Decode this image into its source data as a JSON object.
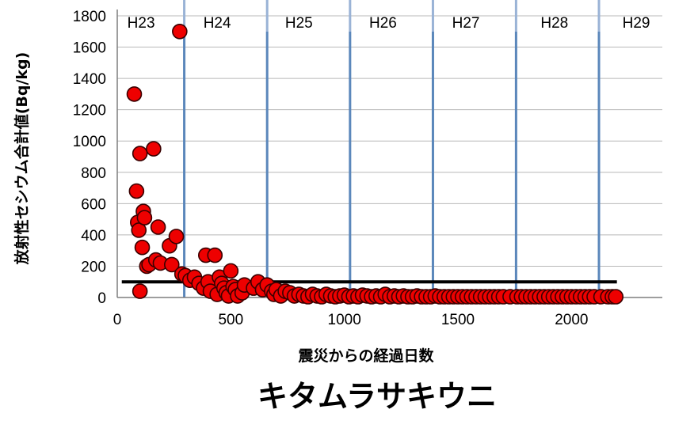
{
  "chart_data": {
    "type": "scatter",
    "title": "キタムラサキウニ",
    "xlabel": "震災からの経過日数",
    "ylabel": "放射性セシウム合計値(Bq/kg)",
    "xlim": [
      0,
      2400
    ],
    "ylim": [
      0,
      1800
    ],
    "x_ticks": [
      0,
      500,
      1000,
      1500,
      2000
    ],
    "y_ticks": [
      0,
      200,
      400,
      600,
      800,
      1000,
      1200,
      1400,
      1600,
      1800
    ],
    "x_tick_labels": [
      "0",
      "500",
      "1000",
      "1500",
      "2000"
    ],
    "y_tick_labels": [
      "0",
      "200",
      "400",
      "600",
      "800",
      "1000",
      "1200",
      "1400",
      "1600",
      "1800"
    ],
    "grid": "horizontal",
    "marker_color": "#ee0000",
    "marker_edge_color": "#3a0000",
    "reference_line": {
      "y": 100,
      "x_start": 20,
      "x_end": 2200,
      "color": "#000000"
    },
    "fiscal_year_boundaries": [
      {
        "x": 295,
        "color": "#5b87bb"
      },
      {
        "x": 660,
        "color": "#5b87bb"
      },
      {
        "x": 1025,
        "color": "#5b87bb"
      },
      {
        "x": 1390,
        "color": "#5b87bb"
      },
      {
        "x": 1756,
        "color": "#5b87bb"
      },
      {
        "x": 2121,
        "color": "#5b87bb"
      }
    ],
    "fiscal_year_labels": [
      {
        "label": "H23",
        "x": 105
      },
      {
        "label": "H24",
        "x": 440
      },
      {
        "label": "H25",
        "x": 800
      },
      {
        "label": "H26",
        "x": 1170
      },
      {
        "label": "H27",
        "x": 1535
      },
      {
        "label": "H28",
        "x": 1925
      },
      {
        "label": "H29",
        "x": 2285
      }
    ],
    "points": [
      [
        75,
        1300
      ],
      [
        85,
        680
      ],
      [
        90,
        480
      ],
      [
        95,
        430
      ],
      [
        100,
        920
      ],
      [
        100,
        40
      ],
      [
        110,
        320
      ],
      [
        115,
        550
      ],
      [
        120,
        510
      ],
      [
        130,
        200
      ],
      [
        140,
        210
      ],
      [
        160,
        950
      ],
      [
        170,
        240
      ],
      [
        180,
        450
      ],
      [
        190,
        220
      ],
      [
        230,
        330
      ],
      [
        240,
        210
      ],
      [
        260,
        390
      ],
      [
        275,
        1700
      ],
      [
        285,
        150
      ],
      [
        300,
        140
      ],
      [
        320,
        110
      ],
      [
        340,
        130
      ],
      [
        360,
        90
      ],
      [
        380,
        60
      ],
      [
        390,
        270
      ],
      [
        400,
        100
      ],
      [
        410,
        40
      ],
      [
        430,
        270
      ],
      [
        440,
        20
      ],
      [
        450,
        130
      ],
      [
        460,
        90
      ],
      [
        470,
        60
      ],
      [
        480,
        30
      ],
      [
        490,
        10
      ],
      [
        500,
        170
      ],
      [
        510,
        70
      ],
      [
        520,
        50
      ],
      [
        530,
        10
      ],
      [
        550,
        30
      ],
      [
        560,
        80
      ],
      [
        600,
        60
      ],
      [
        620,
        100
      ],
      [
        640,
        50
      ],
      [
        660,
        80
      ],
      [
        680,
        40
      ],
      [
        690,
        20
      ],
      [
        700,
        50
      ],
      [
        720,
        10
      ],
      [
        740,
        40
      ],
      [
        760,
        30
      ],
      [
        780,
        10
      ],
      [
        800,
        20
      ],
      [
        820,
        10
      ],
      [
        840,
        5
      ],
      [
        860,
        20
      ],
      [
        880,
        10
      ],
      [
        900,
        5
      ],
      [
        920,
        20
      ],
      [
        940,
        10
      ],
      [
        960,
        5
      ],
      [
        980,
        10
      ],
      [
        1000,
        15
      ],
      [
        1020,
        5
      ],
      [
        1040,
        10
      ],
      [
        1060,
        5
      ],
      [
        1080,
        15
      ],
      [
        1100,
        10
      ],
      [
        1120,
        5
      ],
      [
        1140,
        10
      ],
      [
        1160,
        5
      ],
      [
        1180,
        20
      ],
      [
        1200,
        5
      ],
      [
        1220,
        10
      ],
      [
        1240,
        5
      ],
      [
        1260,
        10
      ],
      [
        1280,
        5
      ],
      [
        1300,
        5
      ],
      [
        1320,
        10
      ],
      [
        1340,
        5
      ],
      [
        1360,
        5
      ],
      [
        1380,
        5
      ],
      [
        1400,
        10
      ],
      [
        1420,
        5
      ],
      [
        1440,
        5
      ],
      [
        1460,
        5
      ],
      [
        1480,
        5
      ],
      [
        1500,
        5
      ],
      [
        1520,
        5
      ],
      [
        1540,
        5
      ],
      [
        1560,
        5
      ],
      [
        1580,
        5
      ],
      [
        1600,
        5
      ],
      [
        1620,
        5
      ],
      [
        1640,
        5
      ],
      [
        1660,
        5
      ],
      [
        1680,
        5
      ],
      [
        1700,
        5
      ],
      [
        1730,
        5
      ],
      [
        1760,
        5
      ],
      [
        1780,
        5
      ],
      [
        1800,
        5
      ],
      [
        1820,
        5
      ],
      [
        1840,
        5
      ],
      [
        1860,
        5
      ],
      [
        1880,
        5
      ],
      [
        1900,
        5
      ],
      [
        1920,
        5
      ],
      [
        1940,
        5
      ],
      [
        1960,
        5
      ],
      [
        1980,
        5
      ],
      [
        2000,
        5
      ],
      [
        2020,
        5
      ],
      [
        2040,
        5
      ],
      [
        2060,
        5
      ],
      [
        2080,
        5
      ],
      [
        2100,
        5
      ],
      [
        2130,
        5
      ],
      [
        2160,
        5
      ],
      [
        2180,
        5
      ],
      [
        2195,
        5
      ]
    ]
  }
}
